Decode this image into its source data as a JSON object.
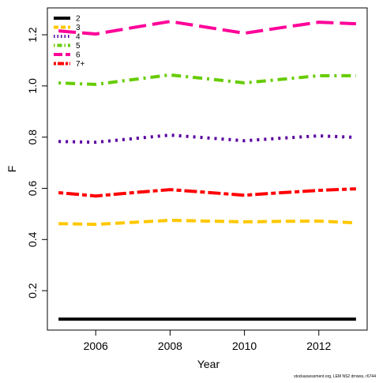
{
  "chart_data": {
    "type": "line",
    "xlabel": "Year",
    "ylabel": "F",
    "x": [
      2005,
      2006,
      2007,
      2008,
      2009,
      2010,
      2011,
      2012,
      2013
    ],
    "series": [
      {
        "name": "2",
        "color": "#000000",
        "dash": "solid",
        "values": [
          0.089,
          0.089,
          0.089,
          0.089,
          0.089,
          0.089,
          0.089,
          0.089,
          0.089
        ]
      },
      {
        "name": "3",
        "color": "#FFC800",
        "dash": "dashed",
        "values": [
          0.462,
          0.459,
          0.467,
          0.475,
          0.472,
          0.469,
          0.471,
          0.472,
          0.465
        ]
      },
      {
        "name": "4",
        "color": "#5A00A0",
        "dash": "dotted",
        "values": [
          0.783,
          0.78,
          0.794,
          0.808,
          0.797,
          0.786,
          0.796,
          0.805,
          0.799
        ]
      },
      {
        "name": "5",
        "color": "#66CC00",
        "dash": "dotdash",
        "values": [
          1.012,
          1.006,
          1.025,
          1.043,
          1.028,
          1.012,
          1.026,
          1.04,
          1.04
        ]
      },
      {
        "name": "6",
        "color": "#FF0099",
        "dash": "longdash",
        "values": [
          1.215,
          1.203,
          1.228,
          1.252,
          1.229,
          1.206,
          1.228,
          1.249,
          1.243
        ]
      },
      {
        "name": "7+",
        "color": "#FF0000",
        "dash": "twodash",
        "values": [
          0.583,
          0.57,
          0.583,
          0.595,
          0.584,
          0.573,
          0.583,
          0.592,
          0.598
        ]
      }
    ],
    "xlim": [
      2004.7,
      2013.3
    ],
    "ylim": [
      0.046,
      1.305
    ],
    "xticks": [
      2006,
      2008,
      2010,
      2012
    ],
    "yticks": [
      0.2,
      0.4,
      0.6,
      0.8,
      1.0,
      1.2
    ],
    "legend": "top-left",
    "footnote": "stockassessment.org, LEM NS2 drnwss, r6744"
  }
}
